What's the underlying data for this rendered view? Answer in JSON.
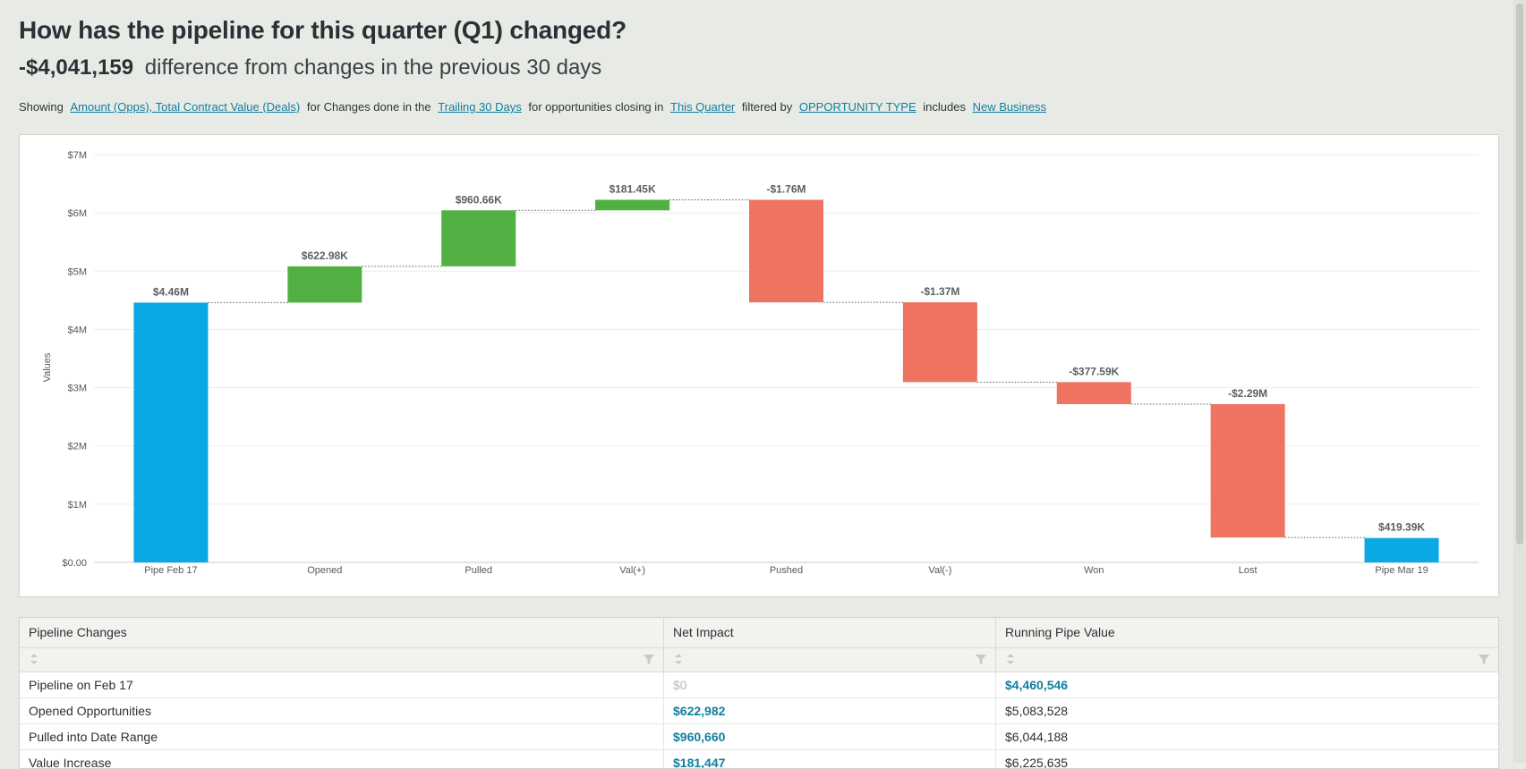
{
  "header": {
    "title": "How has the pipeline for this quarter (Q1) changed?",
    "difference_amount": "-$4,041,159",
    "difference_text": "difference from changes in the previous 30 days"
  },
  "filters": {
    "showing_label": "Showing",
    "measure": "Amount (Opps), Total Contract Value (Deals)",
    "changes_text": "for Changes done in the",
    "period": "Trailing 30 Days",
    "closing_text": "for opportunities closing in",
    "closing_range": "This Quarter",
    "filtered_text": "filtered by",
    "filter_field": "OPPORTUNITY TYPE",
    "includes_text": "includes",
    "filter_value": "New Business"
  },
  "colors": {
    "total": "#0aa8e4",
    "increase": "#52b043",
    "decrease": "#ee7360"
  },
  "chart_data": {
    "type": "bar",
    "subtype": "waterfall",
    "categories": [
      "Pipe Feb 17",
      "Opened",
      "Pulled",
      "Val(+)",
      "Pushed",
      "Val(-)",
      "Won",
      "Lost",
      "Pipe Mar 19"
    ],
    "values": [
      4460546,
      622982,
      960660,
      181447,
      -1760000,
      -1370000,
      -377590,
      -2290000,
      419387
    ],
    "kinds": [
      "total",
      "increase",
      "increase",
      "increase",
      "decrease",
      "decrease",
      "decrease",
      "decrease",
      "total"
    ],
    "data_labels": [
      "$4.46M",
      "$622.98K",
      "$960.66K",
      "$181.45K",
      "-$1.76M",
      "-$1.37M",
      "-$377.59K",
      "-$2.29M",
      "$419.39K"
    ],
    "ylabel": "Values",
    "ylim": [
      0,
      7000000
    ],
    "y_ticks": [
      0,
      1000000,
      2000000,
      3000000,
      4000000,
      5000000,
      6000000,
      7000000
    ],
    "y_tick_labels": [
      "$0.00",
      "$1M",
      "$2M",
      "$3M",
      "$4M",
      "$5M",
      "$6M",
      "$7M"
    ],
    "grid": true,
    "connectors": "dotted"
  },
  "table": {
    "columns": [
      "Pipeline Changes",
      "Net Impact",
      "Running Pipe Value"
    ],
    "rows": [
      {
        "change": "Pipeline on Feb 17",
        "impact": "$0",
        "running": "$4,460,546",
        "impact_style": "muted",
        "running_style": "link"
      },
      {
        "change": "Opened Opportunities",
        "impact": "$622,982",
        "running": "$5,083,528",
        "impact_style": "link",
        "running_style": "plain"
      },
      {
        "change": "Pulled into Date Range",
        "impact": "$960,660",
        "running": "$6,044,188",
        "impact_style": "link",
        "running_style": "plain"
      },
      {
        "change": "Value Increase",
        "impact": "$181,447",
        "running": "$6,225,635",
        "impact_style": "link",
        "running_style": "plain"
      }
    ]
  }
}
